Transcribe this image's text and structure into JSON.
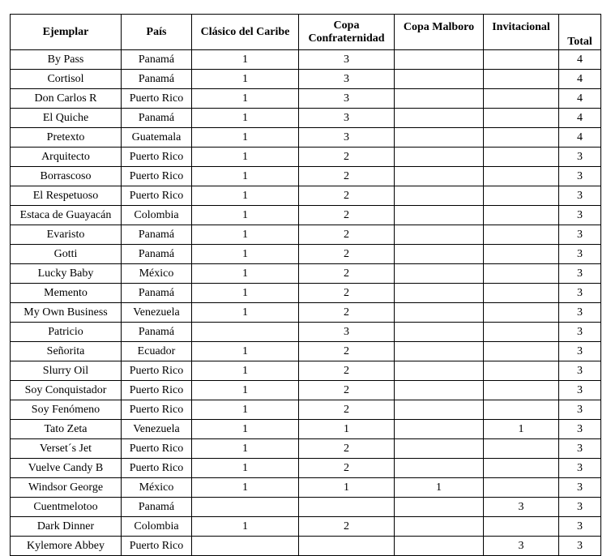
{
  "headers": [
    "Ejemplar",
    "País",
    "Clásico del Caribe",
    "Copa Confraternidad",
    "Copa Malboro",
    "Invitacional",
    "Total"
  ],
  "rows": [
    [
      "By Pass",
      "Panamá",
      "1",
      "3",
      "",
      "",
      "4"
    ],
    [
      "Cortisol",
      "Panamá",
      "1",
      "3",
      "",
      "",
      "4"
    ],
    [
      "Don Carlos R",
      "Puerto Rico",
      "1",
      "3",
      "",
      "",
      "4"
    ],
    [
      "El Quiche",
      "Panamá",
      "1",
      "3",
      "",
      "",
      "4"
    ],
    [
      "Pretexto",
      "Guatemala",
      "1",
      "3",
      "",
      "",
      "4"
    ],
    [
      "Arquitecto",
      "Puerto Rico",
      "1",
      "2",
      "",
      "",
      "3"
    ],
    [
      "Borrascoso",
      "Puerto Rico",
      "1",
      "2",
      "",
      "",
      "3"
    ],
    [
      "El Respetuoso",
      "Puerto Rico",
      "1",
      "2",
      "",
      "",
      "3"
    ],
    [
      "Estaca de Guayacán",
      "Colombia",
      "1",
      "2",
      "",
      "",
      "3"
    ],
    [
      "Evaristo",
      "Panamá",
      "1",
      "2",
      "",
      "",
      "3"
    ],
    [
      "Gotti",
      "Panamá",
      "1",
      "2",
      "",
      "",
      "3"
    ],
    [
      "Lucky Baby",
      "México",
      "1",
      "2",
      "",
      "",
      "3"
    ],
    [
      "Memento",
      "Panamá",
      "1",
      "2",
      "",
      "",
      "3"
    ],
    [
      "My Own Business",
      "Venezuela",
      "1",
      "2",
      "",
      "",
      "3"
    ],
    [
      "Patricio",
      "Panamá",
      "",
      "3",
      "",
      "",
      "3"
    ],
    [
      "Señorita",
      "Ecuador",
      "1",
      "2",
      "",
      "",
      "3"
    ],
    [
      "Slurry Oil",
      "Puerto Rico",
      "1",
      "2",
      "",
      "",
      "3"
    ],
    [
      "Soy Conquistador",
      "Puerto Rico",
      "1",
      "2",
      "",
      "",
      "3"
    ],
    [
      "Soy Fenómeno",
      "Puerto Rico",
      "1",
      "2",
      "",
      "",
      "3"
    ],
    [
      "Tato Zeta",
      "Venezuela",
      "1",
      "1",
      "",
      "1",
      "3"
    ],
    [
      "Verset´s Jet",
      "Puerto Rico",
      "1",
      "2",
      "",
      "",
      "3"
    ],
    [
      "Vuelve Candy B",
      "Puerto Rico",
      "1",
      "2",
      "",
      "",
      "3"
    ],
    [
      "Windsor George",
      "México",
      "1",
      "1",
      "1",
      "",
      "3"
    ],
    [
      "Cuentmelotoo",
      "Panamá",
      "",
      "",
      "",
      "3",
      "3"
    ],
    [
      "Dark Dinner",
      "Colombia",
      "1",
      "2",
      "",
      "",
      "3"
    ],
    [
      "Kylemore Abbey",
      "Puerto Rico",
      "",
      "",
      "",
      "3",
      "3"
    ]
  ]
}
